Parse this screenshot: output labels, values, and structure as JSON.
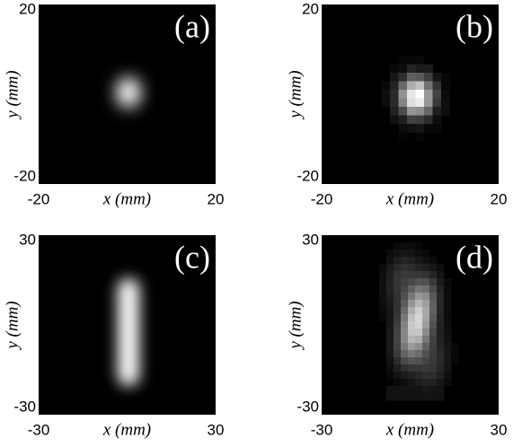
{
  "chart_data": [
    {
      "type": "image",
      "label": "(a)",
      "xlabel": "x (mm)",
      "ylabel": "y (mm)",
      "xlim": [
        -20,
        20
      ],
      "ylim": [
        -20,
        20
      ],
      "xticks": [
        -20,
        20
      ],
      "yticks": [
        -20,
        20
      ]
    },
    {
      "type": "image",
      "label": "(b)",
      "xlabel": "x (mm)",
      "ylabel": "y (mm)",
      "xlim": [
        -20,
        20
      ],
      "ylim": [
        -20,
        20
      ],
      "xticks": [
        -20,
        20
      ],
      "yticks": [
        -20,
        20
      ]
    },
    {
      "type": "image",
      "label": "(c)",
      "xlabel": "x (mm)",
      "ylabel": "y (mm)",
      "xlim": [
        -30,
        30
      ],
      "ylim": [
        -30,
        30
      ],
      "xticks": [
        -30,
        30
      ],
      "yticks": [
        -30,
        30
      ]
    },
    {
      "type": "image",
      "label": "(d)",
      "xlabel": "x (mm)",
      "ylabel": "y (mm)",
      "xlim": [
        -30,
        30
      ],
      "ylim": [
        -30,
        30
      ],
      "xticks": [
        -30,
        30
      ],
      "yticks": [
        -30,
        30
      ]
    }
  ]
}
